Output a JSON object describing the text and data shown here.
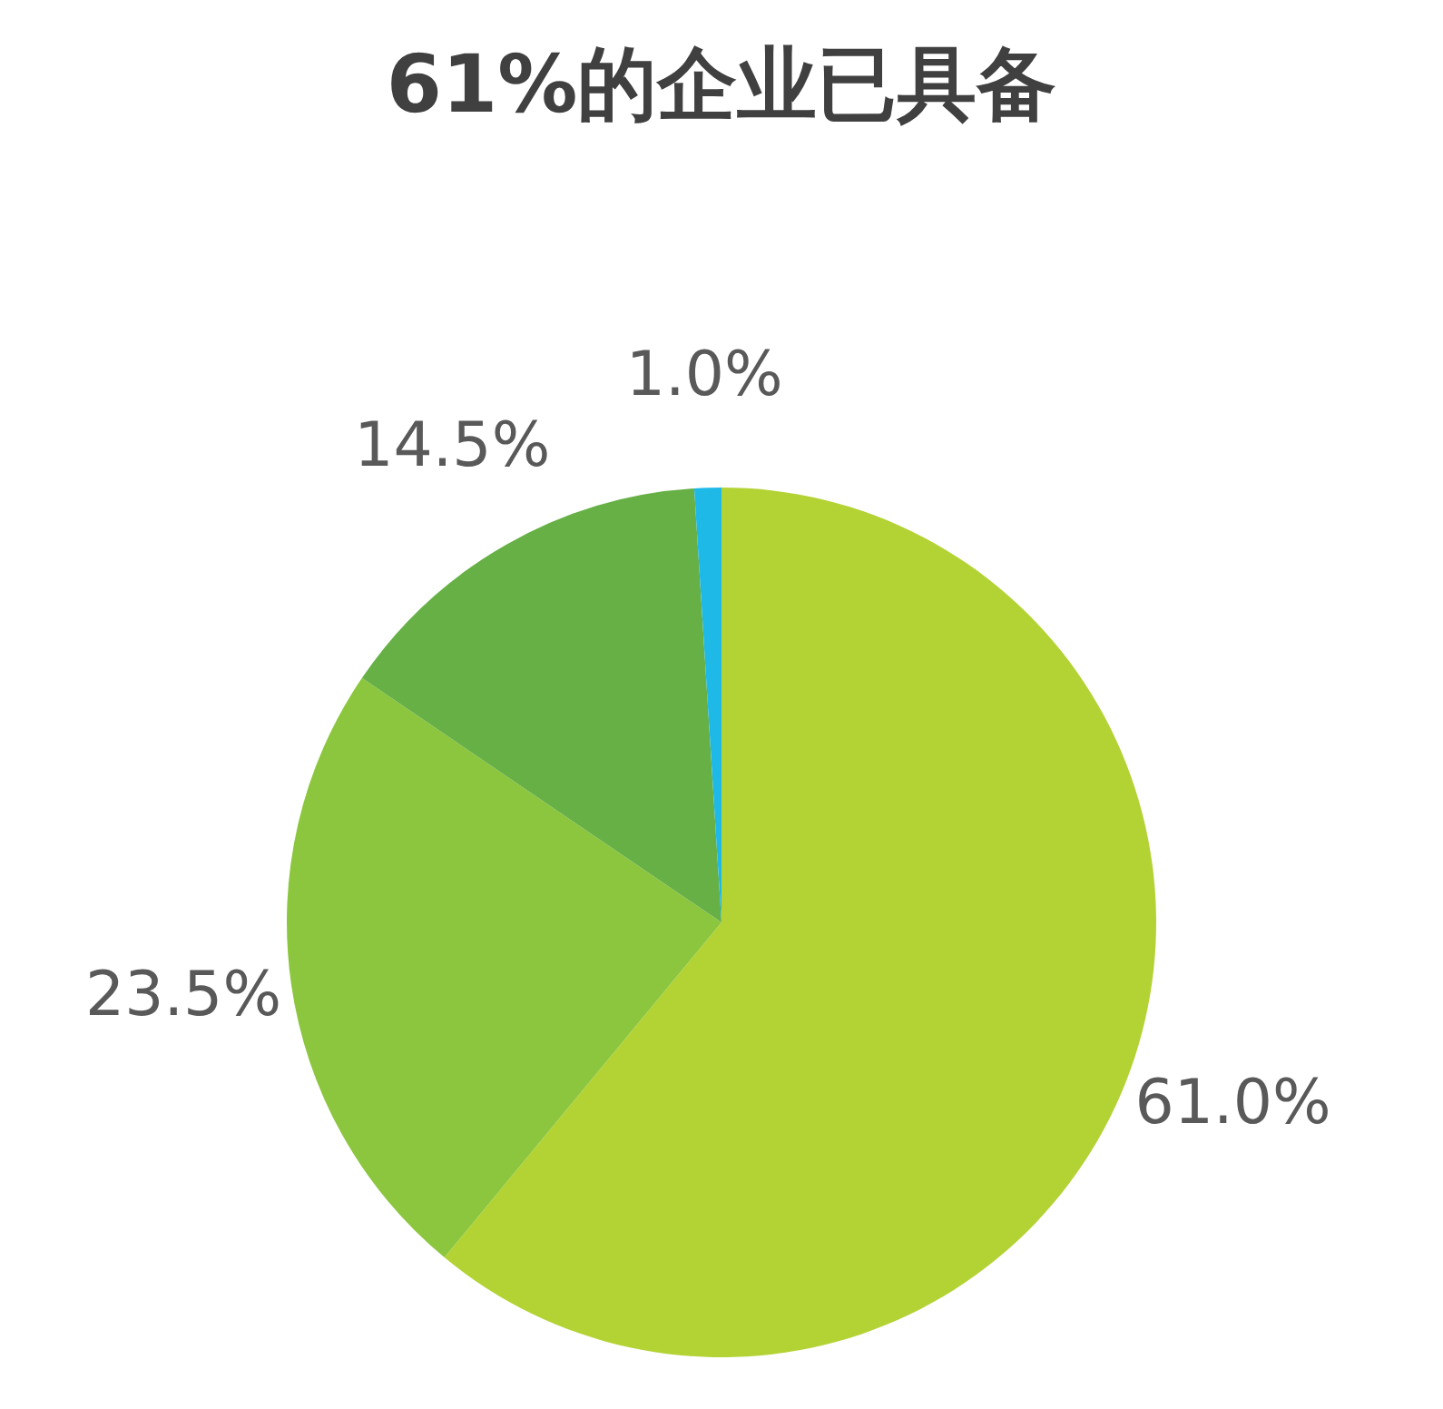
{
  "chart_data": {
    "type": "pie",
    "title": "61%的企业已具备",
    "categories": [
      null,
      null,
      null,
      null
    ],
    "values": [
      61.0,
      23.5,
      14.5,
      1.0
    ],
    "colors": [
      "#b3d334",
      "#8cc63f",
      "#66b046",
      "#1fb9e8"
    ],
    "value_labels": [
      "61.0%",
      "23.5%",
      "14.5%",
      "1.0%"
    ],
    "legend": false
  }
}
